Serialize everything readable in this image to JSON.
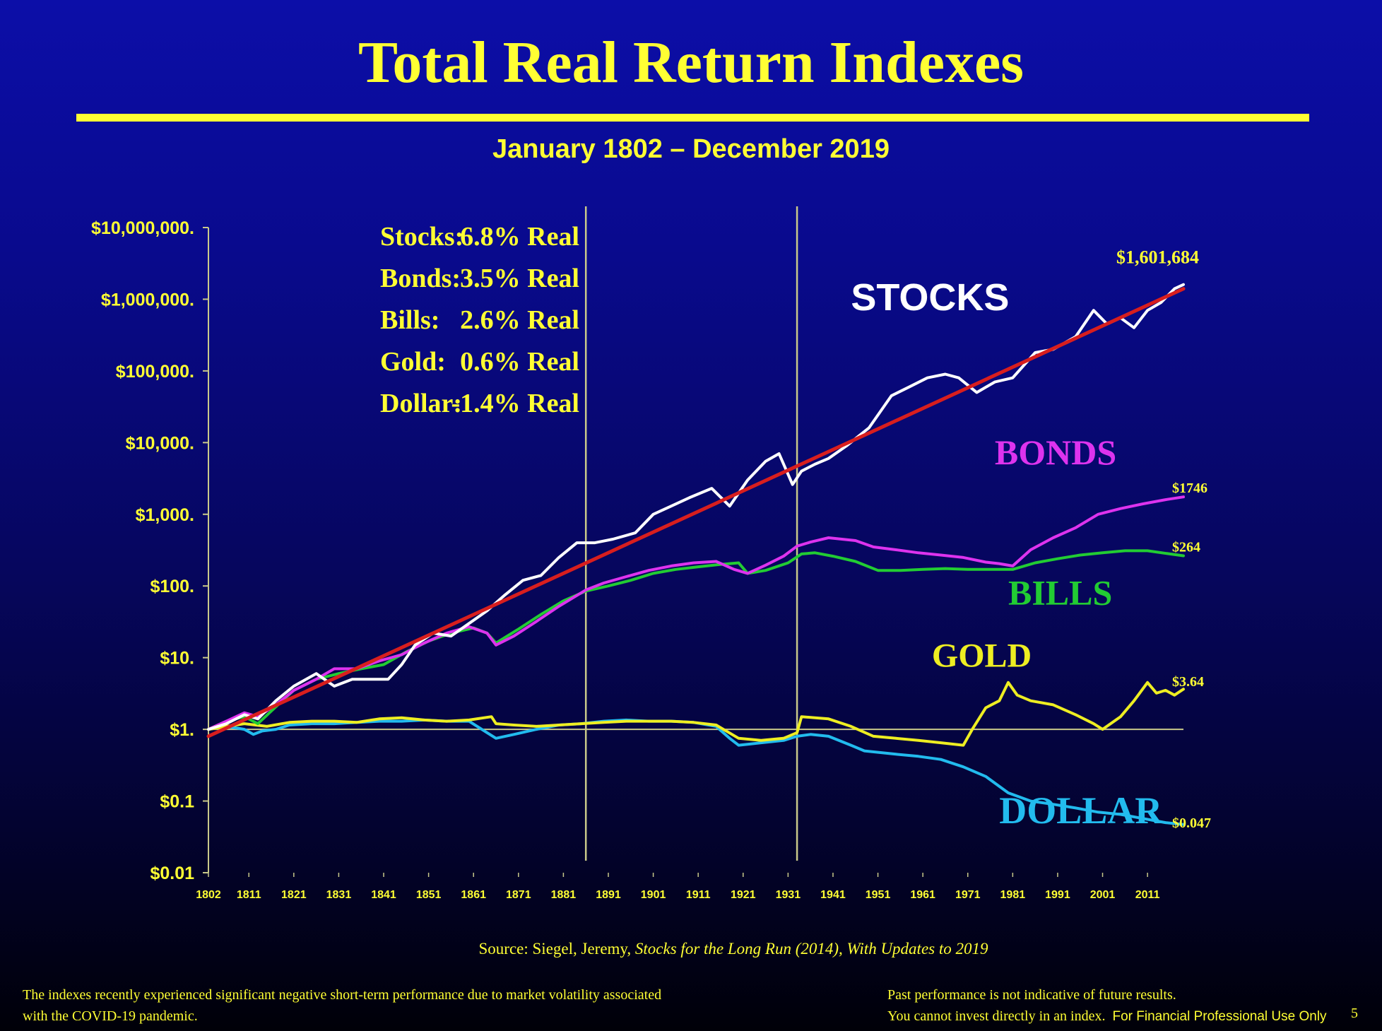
{
  "slide": {
    "title": "Total Real Return Indexes",
    "subtitle": "January 1802 – December 2019",
    "source_prefix": "Source: Siegel, Jeremy, ",
    "source_book": "Stocks for the Long Run (2014), With Updates to 2019",
    "footnote_left_1": "The indexes recently experienced significant  negative short-term performance due to market volatility associated",
    "footnote_left_2": "with the COVID-19 pandemic.",
    "footnote_right_1": "Past performance is not indicative of future results.",
    "footnote_right_2": "You  cannot invest directly in an index.",
    "footnote_right_3": "For Financial Professional Use Only",
    "page_number": "5"
  },
  "colors": {
    "background": "#0a0b96",
    "accent": "#ffff33",
    "stocks": "#ffffff",
    "trend": "#d81e1e",
    "bonds": "#dd33ee",
    "bills": "#22cc33",
    "gold": "#eeee22",
    "dollar": "#22bbee",
    "grid": "#c9c98a"
  },
  "chart_data": {
    "type": "line",
    "y_scale": "log",
    "ylim": [
      0.01,
      10000000
    ],
    "xlim": [
      1802,
      2019
    ],
    "y_ticks": [
      {
        "value": 10000000,
        "label": "$10,000,000."
      },
      {
        "value": 1000000,
        "label": "$1,000,000."
      },
      {
        "value": 100000,
        "label": "$100,000."
      },
      {
        "value": 10000,
        "label": "$10,000."
      },
      {
        "value": 1000,
        "label": "$1,000."
      },
      {
        "value": 100,
        "label": "$100."
      },
      {
        "value": 10,
        "label": "$10."
      },
      {
        "value": 1,
        "label": "$1."
      },
      {
        "value": 0.1,
        "label": "$0.1"
      },
      {
        "value": 0.01,
        "label": "$0.01"
      }
    ],
    "x_ticks": [
      "1802",
      "1811",
      "1821",
      "1831",
      "1841",
      "1851",
      "1861",
      "1871",
      "1881",
      "1891",
      "1901",
      "1911",
      "1921",
      "1931",
      "1941",
      "1951",
      "1961",
      "1971",
      "1981",
      "1991",
      "2001",
      "2011"
    ],
    "vertical_markers": [
      1886,
      1933
    ],
    "reference_line_y": 1,
    "stats": [
      {
        "name": "Stocks:",
        "value": "6.8% Real"
      },
      {
        "name": "Bonds:",
        "value": "3.5% Real"
      },
      {
        "name": "Bills:",
        "value": "2.6% Real"
      },
      {
        "name": "Gold:",
        "value": "0.6% Real"
      },
      {
        "name": "Dollar:",
        "value": "-1.4% Real"
      }
    ],
    "series": [
      {
        "name": "STOCKS",
        "end_label": "$1,601,684",
        "x": [
          1802,
          1806,
          1810,
          1813,
          1817,
          1821,
          1826,
          1830,
          1834,
          1838,
          1842,
          1845,
          1848,
          1852,
          1856,
          1860,
          1864,
          1868,
          1872,
          1876,
          1880,
          1884,
          1888,
          1892,
          1897,
          1901,
          1905,
          1909,
          1914,
          1918,
          1922,
          1926,
          1929,
          1932,
          1934,
          1937,
          1940,
          1944,
          1949,
          1954,
          1958,
          1962,
          1966,
          1969,
          1973,
          1977,
          1981,
          1986,
          1990,
          1995,
          1999,
          2002,
          2005,
          2008,
          2011,
          2014,
          2017,
          2019
        ],
        "values": [
          1,
          1.2,
          1.6,
          1.4,
          2.5,
          4,
          6,
          4,
          5,
          5,
          5,
          8,
          15,
          22,
          20,
          30,
          45,
          75,
          120,
          140,
          250,
          400,
          400,
          450,
          550,
          1000,
          1300,
          1700,
          2300,
          1300,
          3000,
          5500,
          7000,
          2600,
          4000,
          5000,
          6000,
          9000,
          16000,
          45000,
          60000,
          80000,
          90000,
          80000,
          50000,
          70000,
          80000,
          180000,
          200000,
          300000,
          700000,
          450000,
          550000,
          400000,
          700000,
          900000,
          1400000,
          1601684
        ]
      },
      {
        "name": "Trend",
        "x": [
          1802,
          2019
        ],
        "values": [
          0.8,
          1400000
        ]
      },
      {
        "name": "BONDS",
        "end_label": "$1746",
        "x": [
          1802,
          1806,
          1810,
          1813,
          1817,
          1821,
          1826,
          1830,
          1835,
          1840,
          1845,
          1850,
          1855,
          1860,
          1864,
          1866,
          1870,
          1875,
          1880,
          1886,
          1890,
          1895,
          1900,
          1905,
          1910,
          1915,
          1919,
          1922,
          1926,
          1930,
          1933,
          1936,
          1940,
          1946,
          1950,
          1955,
          1960,
          1965,
          1970,
          1975,
          1978,
          1981,
          1985,
          1990,
          1995,
          2000,
          2005,
          2010,
          2015,
          2019
        ],
        "values": [
          1,
          1.3,
          1.7,
          1.5,
          2.2,
          3.5,
          5,
          7,
          7,
          9,
          11,
          16,
          22,
          27,
          22,
          15,
          20,
          32,
          52,
          88,
          110,
          135,
          165,
          190,
          210,
          220,
          170,
          150,
          195,
          260,
          360,
          410,
          470,
          430,
          350,
          320,
          290,
          270,
          250,
          215,
          205,
          190,
          320,
          470,
          650,
          1000,
          1200,
          1400,
          1600,
          1746
        ]
      },
      {
        "name": "BILLS",
        "end_label": "$264",
        "x": [
          1802,
          1806,
          1810,
          1813,
          1816,
          1821,
          1826,
          1831,
          1836,
          1841,
          1846,
          1851,
          1856,
          1861,
          1864,
          1866,
          1871,
          1876,
          1881,
          1886,
          1891,
          1896,
          1901,
          1906,
          1911,
          1916,
          1920,
          1922,
          1926,
          1931,
          1934,
          1937,
          1941,
          1946,
          1951,
          1956,
          1961,
          1966,
          1971,
          1976,
          1981,
          1986,
          1991,
          1996,
          2001,
          2006,
          2011,
          2016,
          2019
        ],
        "values": [
          1,
          1.3,
          1.5,
          1.2,
          1.8,
          3.5,
          5,
          6,
          7,
          8,
          12,
          17,
          22,
          26,
          22,
          16,
          25,
          40,
          62,
          85,
          100,
          120,
          150,
          170,
          185,
          200,
          210,
          150,
          165,
          210,
          280,
          290,
          260,
          220,
          165,
          165,
          170,
          175,
          170,
          170,
          170,
          210,
          240,
          270,
          290,
          310,
          310,
          280,
          264
        ]
      },
      {
        "name": "GOLD",
        "end_label": "$3.64",
        "x": [
          1802,
          1806,
          1810,
          1815,
          1820,
          1825,
          1830,
          1835,
          1840,
          1845,
          1850,
          1855,
          1860,
          1865,
          1866,
          1870,
          1875,
          1880,
          1885,
          1890,
          1895,
          1900,
          1905,
          1910,
          1915,
          1920,
          1925,
          1930,
          1933,
          1934,
          1937,
          1940,
          1945,
          1950,
          1955,
          1960,
          1965,
          1970,
          1972,
          1975,
          1978,
          1980,
          1982,
          1985,
          1990,
          1995,
          1999,
          2001,
          2005,
          2008,
          2011,
          2013,
          2015,
          2017,
          2019
        ],
        "values": [
          1,
          1.1,
          1.2,
          1.1,
          1.25,
          1.3,
          1.3,
          1.25,
          1.4,
          1.45,
          1.35,
          1.3,
          1.35,
          1.5,
          1.2,
          1.15,
          1.1,
          1.15,
          1.2,
          1.25,
          1.3,
          1.3,
          1.3,
          1.25,
          1.15,
          0.75,
          0.7,
          0.75,
          0.9,
          1.5,
          1.45,
          1.4,
          1.1,
          0.8,
          0.75,
          0.7,
          0.65,
          0.6,
          1.0,
          2.0,
          2.5,
          4.5,
          3.0,
          2.5,
          2.2,
          1.6,
          1.2,
          1.0,
          1.5,
          2.5,
          4.5,
          3.2,
          3.5,
          3.0,
          3.64
        ]
      },
      {
        "name": "DOLLAR",
        "end_label": "$0.047",
        "x": [
          1802,
          1806,
          1810,
          1812,
          1814,
          1817,
          1820,
          1825,
          1830,
          1835,
          1840,
          1845,
          1850,
          1855,
          1860,
          1864,
          1866,
          1870,
          1875,
          1880,
          1885,
          1890,
          1895,
          1900,
          1905,
          1910,
          1915,
          1918,
          1920,
          1922,
          1925,
          1930,
          1933,
          1936,
          1940,
          1945,
          1948,
          1955,
          1960,
          1965,
          1970,
          1975,
          1980,
          1985,
          1990,
          1995,
          2000,
          2005,
          2010,
          2015,
          2019
        ],
        "values": [
          1,
          1.1,
          1.0,
          0.85,
          0.95,
          1.0,
          1.15,
          1.2,
          1.2,
          1.25,
          1.3,
          1.3,
          1.35,
          1.3,
          1.3,
          0.9,
          0.75,
          0.85,
          1.0,
          1.15,
          1.2,
          1.3,
          1.35,
          1.3,
          1.3,
          1.25,
          1.1,
          0.75,
          0.6,
          0.62,
          0.65,
          0.7,
          0.8,
          0.85,
          0.8,
          0.6,
          0.5,
          0.45,
          0.42,
          0.38,
          0.3,
          0.22,
          0.13,
          0.1,
          0.09,
          0.08,
          0.07,
          0.065,
          0.057,
          0.05,
          0.047
        ]
      }
    ],
    "series_labels": [
      {
        "name": "STOCKS",
        "x": 1945,
        "y": 700000
      },
      {
        "name": "BONDS",
        "x": 1977,
        "y": 5000
      },
      {
        "name": "BILLS",
        "x": 1980,
        "y": 55
      },
      {
        "name": "GOLD",
        "x": 1963,
        "y": 7.5
      },
      {
        "name": "DOLLAR",
        "x": 1978,
        "y": 0.049
      }
    ]
  }
}
